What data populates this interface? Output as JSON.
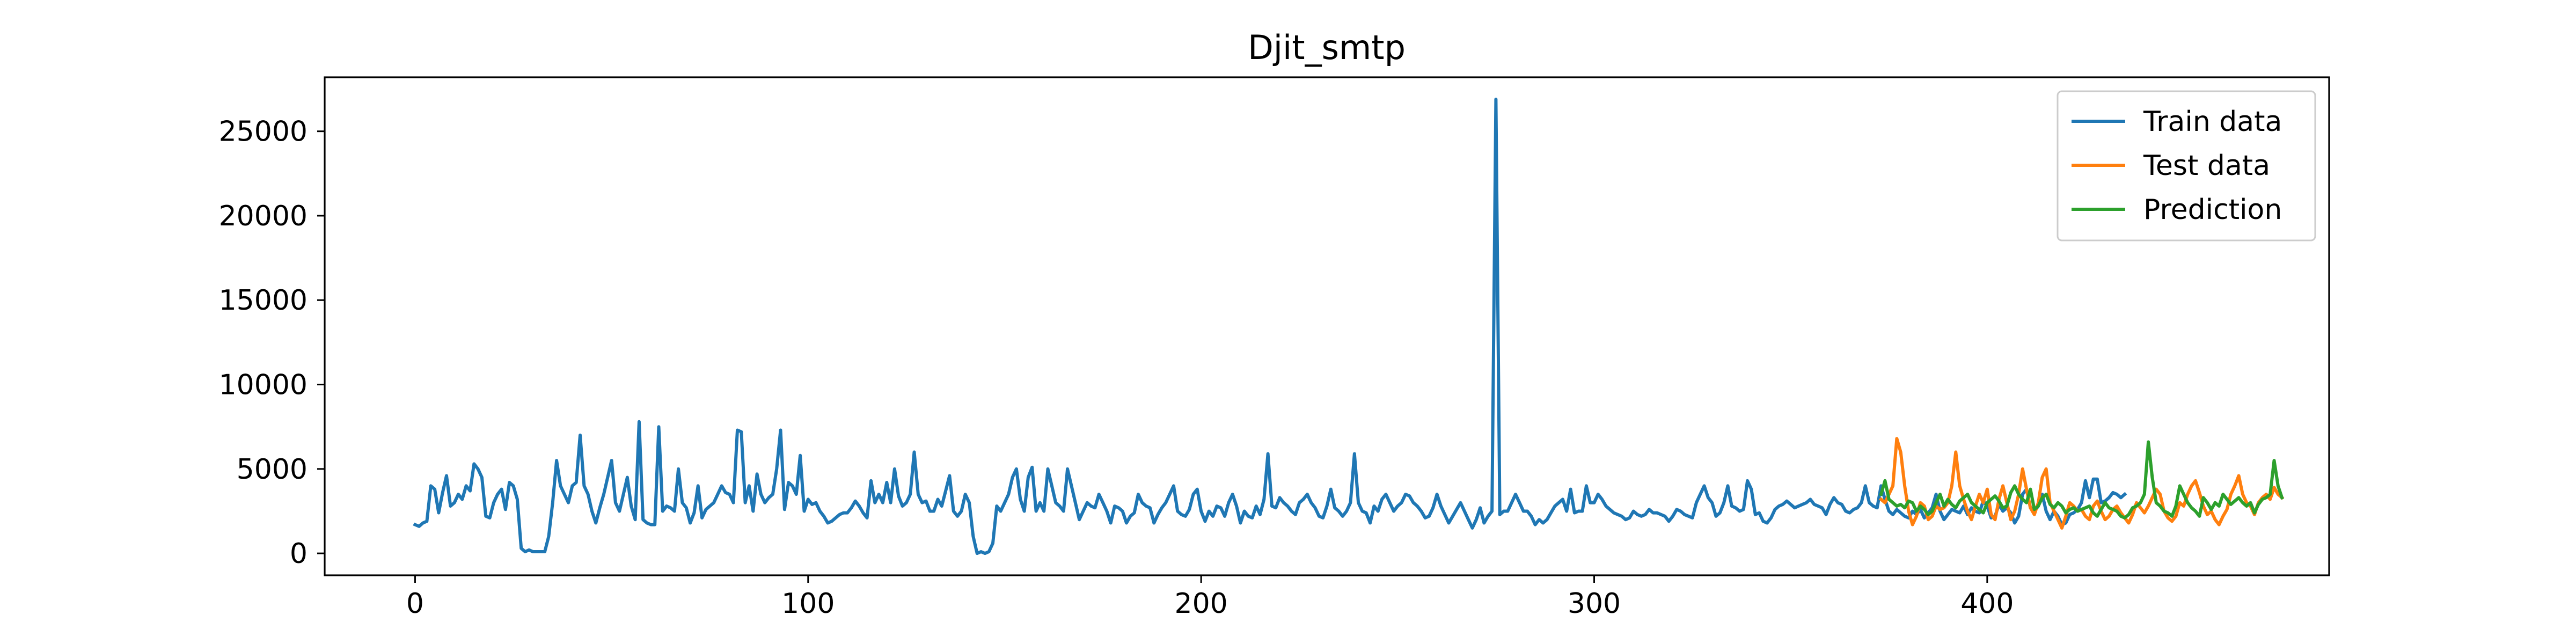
{
  "chart_data": {
    "type": "line",
    "title": "Djit_smtp",
    "xlabel": "",
    "ylabel": "",
    "xlim": [
      -23,
      487
    ],
    "ylim": [
      -1300,
      28200
    ],
    "xticks": [
      0,
      100,
      200,
      300,
      400
    ],
    "yticks": [
      0,
      5000,
      10000,
      15000,
      20000,
      25000
    ],
    "grid": false,
    "legend_position": "top-right",
    "series": [
      {
        "name": "Train data",
        "color": "#1f77b4",
        "x_start": 0,
        "values": [
          1700,
          1600,
          1800,
          1900,
          4000,
          3800,
          2400,
          3600,
          4600,
          2800,
          3000,
          3500,
          3200,
          4000,
          3700,
          5300,
          5000,
          4500,
          2200,
          2100,
          3000,
          3500,
          3800,
          2600,
          4200,
          4000,
          3200,
          300,
          100,
          200,
          100,
          100,
          100,
          100,
          1000,
          3000,
          5500,
          4000,
          3500,
          3000,
          4000,
          4200,
          7000,
          4000,
          3500,
          2500,
          1800,
          2700,
          3500,
          4500,
          5500,
          3000,
          2500,
          3500,
          4500,
          2800,
          2000,
          7800,
          2000,
          1800,
          1700,
          1700,
          7500,
          2500,
          2800,
          2700,
          2500,
          5000,
          3000,
          2700,
          1800,
          2400,
          4000,
          2100,
          2600,
          2800,
          3000,
          3500,
          4000,
          3600,
          3500,
          3000,
          7300,
          7200,
          3000,
          4000,
          2500,
          4700,
          3500,
          3000,
          3300,
          3500,
          5000,
          7300,
          2600,
          4200,
          4000,
          3500,
          5800,
          2500,
          3200,
          2900,
          3000,
          2500,
          2200,
          1800,
          1900,
          2100,
          2300,
          2400,
          2400,
          2700,
          3100,
          2800,
          2400,
          2100,
          4300,
          3000,
          3500,
          3000,
          4200,
          3000,
          5000,
          3400,
          2800,
          3000,
          3500,
          6000,
          3500,
          3000,
          3100,
          2500,
          2500,
          3200,
          2800,
          3700,
          4600,
          2500,
          2200,
          2500,
          3500,
          3000,
          1000,
          0,
          100,
          0,
          100,
          600,
          2800,
          2500,
          3000,
          3500,
          4500,
          5000,
          3200,
          2500,
          4500,
          5100,
          2500,
          3000,
          2500,
          5000,
          4000,
          3000,
          2800,
          2500,
          5000,
          4000,
          3000,
          2000,
          2500,
          3000,
          2800,
          2700,
          3500,
          3000,
          2500,
          1800,
          2800,
          2700,
          2500,
          1800,
          2200,
          2400,
          3500,
          3000,
          2800,
          2700,
          1800,
          2300,
          2700,
          3000,
          3500,
          4000,
          2500,
          2300,
          2200,
          2600,
          3500,
          3800,
          2500,
          1900,
          2500,
          2200,
          2800,
          2700,
          2200,
          3000,
          3500,
          2800,
          1800,
          2500,
          2200,
          2100,
          2800,
          2300,
          3200,
          5900,
          2800,
          2700,
          3300,
          3000,
          2800,
          2500,
          2300,
          3000,
          3200,
          3500,
          3000,
          2700,
          2200,
          2100,
          2800,
          3800,
          2700,
          2500,
          2200,
          2500,
          3000,
          5900,
          3000,
          2500,
          2400,
          1800,
          2800,
          2500,
          3200,
          3500,
          3000,
          2500,
          2800,
          3000,
          3500,
          3400,
          3000,
          2800,
          2500,
          2100,
          2200,
          2700,
          3500,
          2800,
          2300,
          1800,
          2200,
          2600,
          3000,
          2500,
          2000,
          1500,
          2000,
          2700,
          1800,
          2200,
          2500,
          26900,
          2300,
          2500,
          2500,
          3000,
          3500,
          3000,
          2500,
          2500,
          2200,
          1700,
          2000,
          1800,
          2000,
          2400,
          2800,
          3000,
          3200,
          2500,
          3800,
          2400,
          2500,
          2500,
          4000,
          3000,
          3000,
          3500,
          3200,
          2800,
          2600,
          2400,
          2300,
          2200,
          2000,
          2100,
          2500,
          2300,
          2200,
          2300,
          2600,
          2400,
          2400,
          2300,
          2200,
          1900,
          2200,
          2600,
          2500,
          2300,
          2200,
          2100,
          3000,
          3500,
          4000,
          3300,
          3000,
          2200,
          2400,
          3000,
          4000,
          2800,
          2700,
          2500,
          2600,
          4300,
          3800,
          2300,
          2400,
          1900,
          1800,
          2100,
          2600,
          2800,
          2900,
          3100,
          2900,
          2700,
          2800,
          2900,
          3000,
          3200,
          2900,
          2800,
          2700,
          2300,
          2900,
          3300,
          3000,
          2900,
          2500,
          2400,
          2600,
          2700,
          3000,
          4000,
          3000,
          2800,
          2700,
          4000,
          3200,
          2500,
          2300,
          2600,
          2400,
          2200,
          2100,
          2500,
          2300,
          2600,
          2100,
          2400,
          2700,
          3500,
          2500,
          2000,
          2300,
          2600,
          2500,
          2400,
          2800,
          2300,
          2700,
          2500,
          2400,
          3100,
          2800,
          2100,
          2200,
          2900,
          2500,
          2700,
          2400,
          1800,
          2200,
          3500,
          3800,
          2700,
          2500,
          2800,
          3500,
          2500,
          2000,
          2500,
          2200,
          1700,
          1800,
          2300,
          2400,
          2600,
          3000,
          4300,
          3300,
          4400,
          4400,
          3000,
          3100,
          3300,
          3600,
          3500,
          3300,
          3500
        ]
      },
      {
        "name": "Test data",
        "color": "#ff7f0e",
        "x_start": 373,
        "values": [
          3200,
          3000,
          3500,
          4000,
          6800,
          6000,
          4000,
          2500,
          1700,
          2200,
          3000,
          2800,
          2000,
          2200,
          2800,
          2600,
          2700,
          3000,
          4000,
          6000,
          4000,
          3200,
          2500,
          2000,
          2800,
          3500,
          3000,
          3800,
          2300,
          2000,
          3200,
          4000,
          3000,
          2000,
          2500,
          3500,
          5000,
          3800,
          2700,
          2300,
          3000,
          4500,
          5000,
          3000,
          2500,
          2000,
          1500,
          2200,
          3000,
          2800,
          2500,
          2600,
          2200,
          2000,
          2800,
          3100,
          2500,
          2000,
          2200,
          2600,
          2800,
          2400,
          2100,
          1800,
          2300,
          3000,
          2700,
          2400,
          2800,
          3300,
          3800,
          3500,
          2500,
          2100,
          1900,
          2200,
          3000,
          2800,
          3500,
          4000,
          4300,
          3600,
          2800,
          2300,
          2500,
          2000,
          1700,
          2200,
          2600,
          3500,
          4000,
          4600,
          3500,
          3000,
          2800,
          2300,
          3000,
          3300,
          3500,
          3200,
          3900,
          3500,
          3300
        ]
      },
      {
        "name": "Prediction",
        "color": "#2ca02c",
        "x_start": 373,
        "values": [
          3500,
          4300,
          3200,
          3000,
          2800,
          2900,
          2700,
          3100,
          3000,
          2500,
          2800,
          2600,
          2300,
          2500,
          3000,
          3500,
          2800,
          3200,
          2900,
          2700,
          3100,
          3300,
          3500,
          3000,
          2800,
          2600,
          2400,
          3000,
          3200,
          3400,
          3100,
          2700,
          2800,
          3600,
          4000,
          3500,
          3200,
          3000,
          3800,
          2600,
          2800,
          3300,
          3500,
          2900,
          2700,
          3000,
          2800,
          2400,
          2600,
          2700,
          2500,
          2600,
          2700,
          2800,
          2400,
          2200,
          2600,
          3000,
          2700,
          2600,
          2500,
          2200,
          2100,
          2300,
          2700,
          2800,
          3000,
          3500,
          6600,
          4500,
          3000,
          2800,
          2500,
          2400,
          2200,
          2800,
          4000,
          3500,
          3000,
          2700,
          2500,
          2200,
          3300,
          3000,
          2600,
          3000,
          2800,
          3500,
          3200,
          2900,
          3100,
          3300,
          3000,
          2800,
          3000,
          2400,
          2900,
          3200,
          3300,
          3500,
          5500,
          4000,
          3300
        ]
      }
    ]
  }
}
